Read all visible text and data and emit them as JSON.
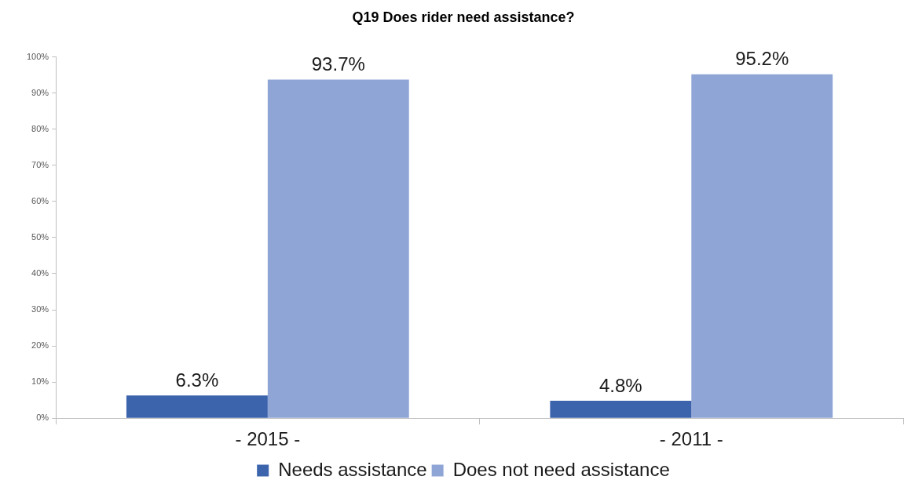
{
  "chart_data": {
    "type": "bar",
    "title": "Q19 Does rider need assistance?",
    "categories": [
      "- 2015 -",
      "- 2011 -"
    ],
    "series": [
      {
        "name": "Needs assistance",
        "color": "#3c64ad",
        "values": [
          6.3,
          4.8
        ],
        "value_labels": [
          "6.3%",
          "4.8%"
        ]
      },
      {
        "name": "Does not need assistance",
        "color": "#8fa5d6",
        "values": [
          93.7,
          95.2
        ],
        "value_labels": [
          "93.7%",
          "95.2%"
        ]
      }
    ],
    "ylim": [
      0,
      100
    ],
    "yticks": [
      {
        "value": 0,
        "label": "0%"
      },
      {
        "value": 10,
        "label": "10%"
      },
      {
        "value": 20,
        "label": "20%"
      },
      {
        "value": 30,
        "label": "30%"
      },
      {
        "value": 40,
        "label": "40%"
      },
      {
        "value": 50,
        "label": "50%"
      },
      {
        "value": 60,
        "label": "60%"
      },
      {
        "value": 70,
        "label": "70%"
      },
      {
        "value": 80,
        "label": "80%"
      },
      {
        "value": 90,
        "label": "90%"
      },
      {
        "value": 100,
        "label": "100%"
      }
    ],
    "legend": "bottom"
  }
}
